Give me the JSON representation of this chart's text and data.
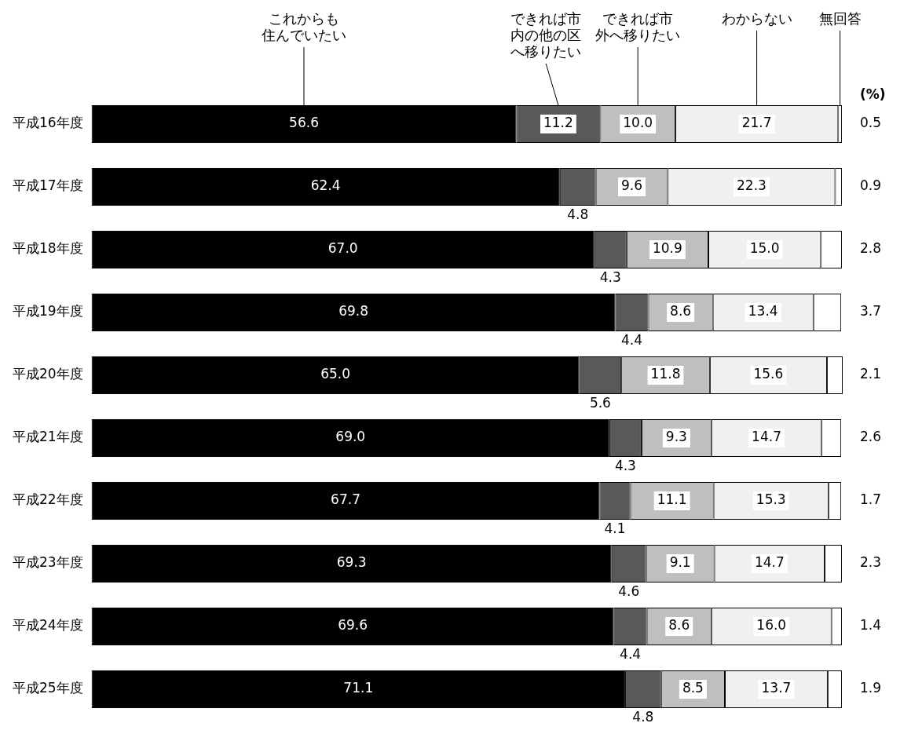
{
  "chart_data": {
    "type": "bar",
    "orientation": "horizontal",
    "stacked": true,
    "legend": false,
    "annotations": [
      "(%)"
    ],
    "categories": [
      "平成16年度",
      "平成17年度",
      "平成18年度",
      "平成19年度",
      "平成20年度",
      "平成21年度",
      "平成22年度",
      "平成23年度",
      "平成24年度",
      "平成25年度"
    ],
    "series": [
      {
        "name": "これからも住んでいたい",
        "color": "#000000",
        "values": [
          56.6,
          62.4,
          67.0,
          69.8,
          65.0,
          69.0,
          67.7,
          69.3,
          69.6,
          71.1
        ],
        "value_labels": [
          "56.6",
          "62.4",
          "67.0",
          "69.8",
          "65.0",
          "69.0",
          "67.7",
          "69.3",
          "69.6",
          "71.1"
        ]
      },
      {
        "name": "できれば市内の他の区へ移りたい",
        "color": "#595959",
        "values": [
          11.2,
          4.8,
          4.3,
          4.4,
          5.6,
          4.3,
          4.1,
          4.6,
          4.4,
          4.8
        ],
        "value_labels": [
          "11.2",
          "4.8",
          "4.3",
          "4.4",
          "5.6",
          "4.3",
          "4.1",
          "4.6",
          "4.4",
          "4.8"
        ]
      },
      {
        "name": "できれば市外へ移りたい",
        "color": "#bfbfbf",
        "values": [
          10.0,
          9.6,
          10.9,
          8.6,
          11.8,
          9.3,
          11.1,
          9.1,
          8.6,
          8.5
        ],
        "value_labels": [
          "10.0",
          "9.6",
          "10.9",
          "8.6",
          "11.8",
          "9.3",
          "11.1",
          "9.1",
          "8.6",
          "8.5"
        ]
      },
      {
        "name": "わからない",
        "color": "#f0f0f0",
        "values": [
          21.7,
          22.3,
          15.0,
          13.4,
          15.6,
          14.7,
          15.3,
          14.7,
          16.0,
          13.7
        ],
        "value_labels": [
          "21.7",
          "22.3",
          "15.0",
          "13.4",
          "15.6",
          "14.7",
          "15.3",
          "14.7",
          "16.0",
          "13.7"
        ]
      },
      {
        "name": "無回答",
        "color": "#ffffff",
        "values": [
          0.5,
          0.9,
          2.8,
          3.7,
          2.1,
          2.6,
          1.7,
          2.3,
          1.4,
          1.9
        ],
        "value_labels": [
          "0.5",
          "0.9",
          "2.8",
          "3.7",
          "2.1",
          "2.6",
          "1.7",
          "2.3",
          "1.4",
          "1.9"
        ]
      }
    ]
  }
}
